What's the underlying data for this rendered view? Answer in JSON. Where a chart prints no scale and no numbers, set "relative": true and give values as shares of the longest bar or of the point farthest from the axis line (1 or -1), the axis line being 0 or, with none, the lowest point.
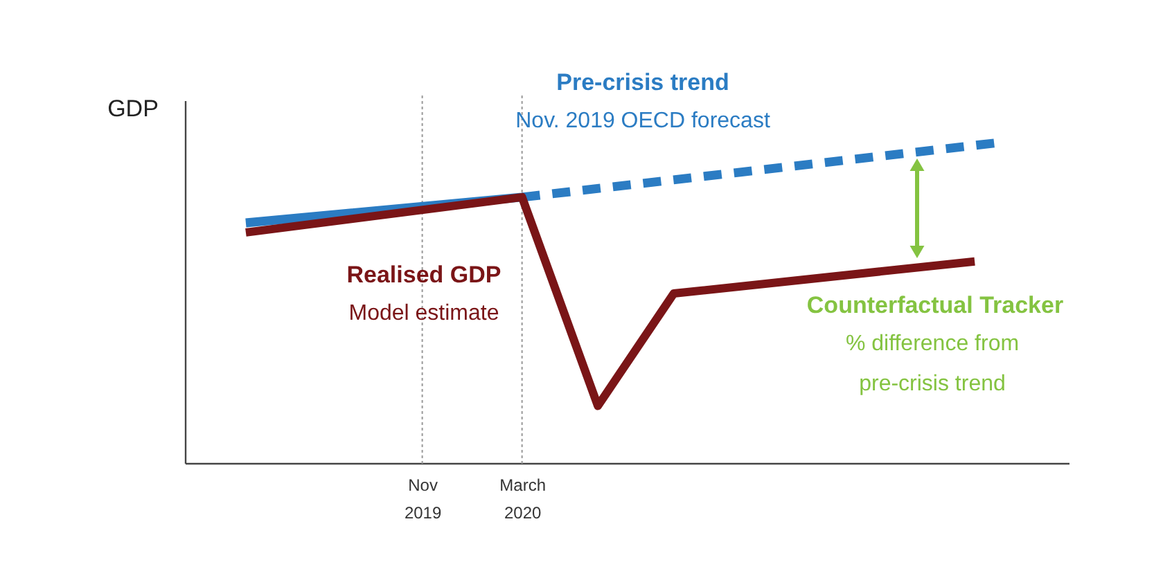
{
  "chart_data": {
    "type": "line",
    "relative": true,
    "ylabel": "GDP",
    "xlim": [
      "2019-01-18",
      "2021-12-25"
    ],
    "marker": "none",
    "xticks": [
      {
        "value": "2019-11",
        "label": "Nov 2019"
      },
      {
        "value": "2020-03",
        "label": "March 2020"
      }
    ],
    "series": [
      {
        "name": "Pre-crisis trend",
        "color": "#2b7cc3",
        "x": [
          "2019-04",
          "2020-03",
          "2021-10"
        ],
        "values": [
          0.75,
          0.83,
          1.0
        ],
        "line_style": "dashed"
      },
      {
        "name": "Realised GDP",
        "color": "#7a1517",
        "x": [
          "2019-04",
          "2020-03",
          "2020-06",
          "2020-09",
          "2021-09"
        ],
        "values": [
          0.72,
          0.83,
          0.18,
          0.53,
          0.63
        ],
        "line_style": "solid"
      }
    ],
    "ref_lines": [
      {
        "axis": "x",
        "value": "2019-11",
        "color": "#999999",
        "line_style": "dotted"
      },
      {
        "axis": "x",
        "value": "2020-03",
        "color": "#999999",
        "line_style": "dotted"
      }
    ],
    "annotations": [
      "Nov. 2019 OECD forecast",
      "Model estimate",
      "Counterfactual Tracker",
      "% difference from pre-crisis trend"
    ]
  }
}
